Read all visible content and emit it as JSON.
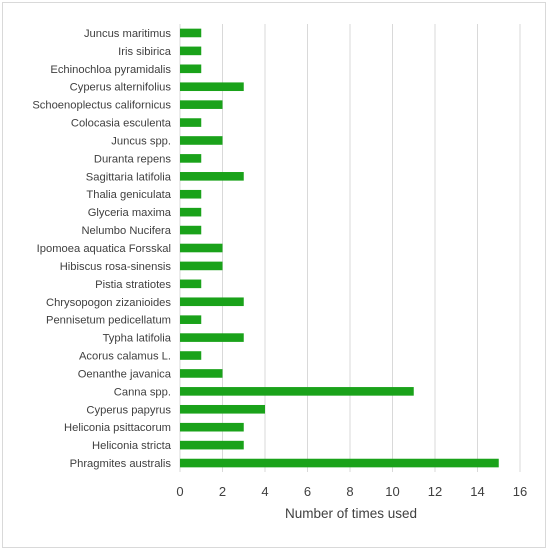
{
  "chart_data": {
    "type": "bar",
    "orientation": "horizontal",
    "title": "",
    "xlabel": "Number of times used",
    "ylabel": "",
    "xlim": [
      0,
      16
    ],
    "xticks": [
      "0",
      "2",
      "4",
      "6",
      "8",
      "10",
      "12",
      "14",
      "16"
    ],
    "grid": true,
    "legend": "none",
    "bar_color": "#1aa21a",
    "categories": [
      "Juncus maritimus",
      "Iris sibirica",
      "Echinochloa pyramidalis",
      "Cyperus alternifolius",
      "Schoenoplectus californicus",
      "Colocasia esculenta",
      "Juncus spp.",
      "Duranta repens",
      "Sagittaria latifolia",
      "Thalia geniculata",
      "Glyceria maxima",
      "Nelumbo Nucifera",
      "Ipomoea aquatica Forsskal",
      "Hibiscus rosa-sinensis",
      "Pistia stratiotes",
      "Chrysopogon zizanioides",
      "Pennisetum pedicellatum",
      "Typha latifolia",
      "Acorus calamus L.",
      "Oenanthe javanica",
      "Canna spp.",
      "Cyperus papyrus",
      "Heliconia psittacorum",
      "Heliconia stricta",
      "Phragmites australis"
    ],
    "values": [
      1,
      1,
      1,
      3,
      2,
      1,
      2,
      1,
      3,
      1,
      1,
      1,
      2,
      2,
      1,
      3,
      1,
      3,
      1,
      2,
      11,
      4,
      3,
      3,
      15
    ]
  }
}
